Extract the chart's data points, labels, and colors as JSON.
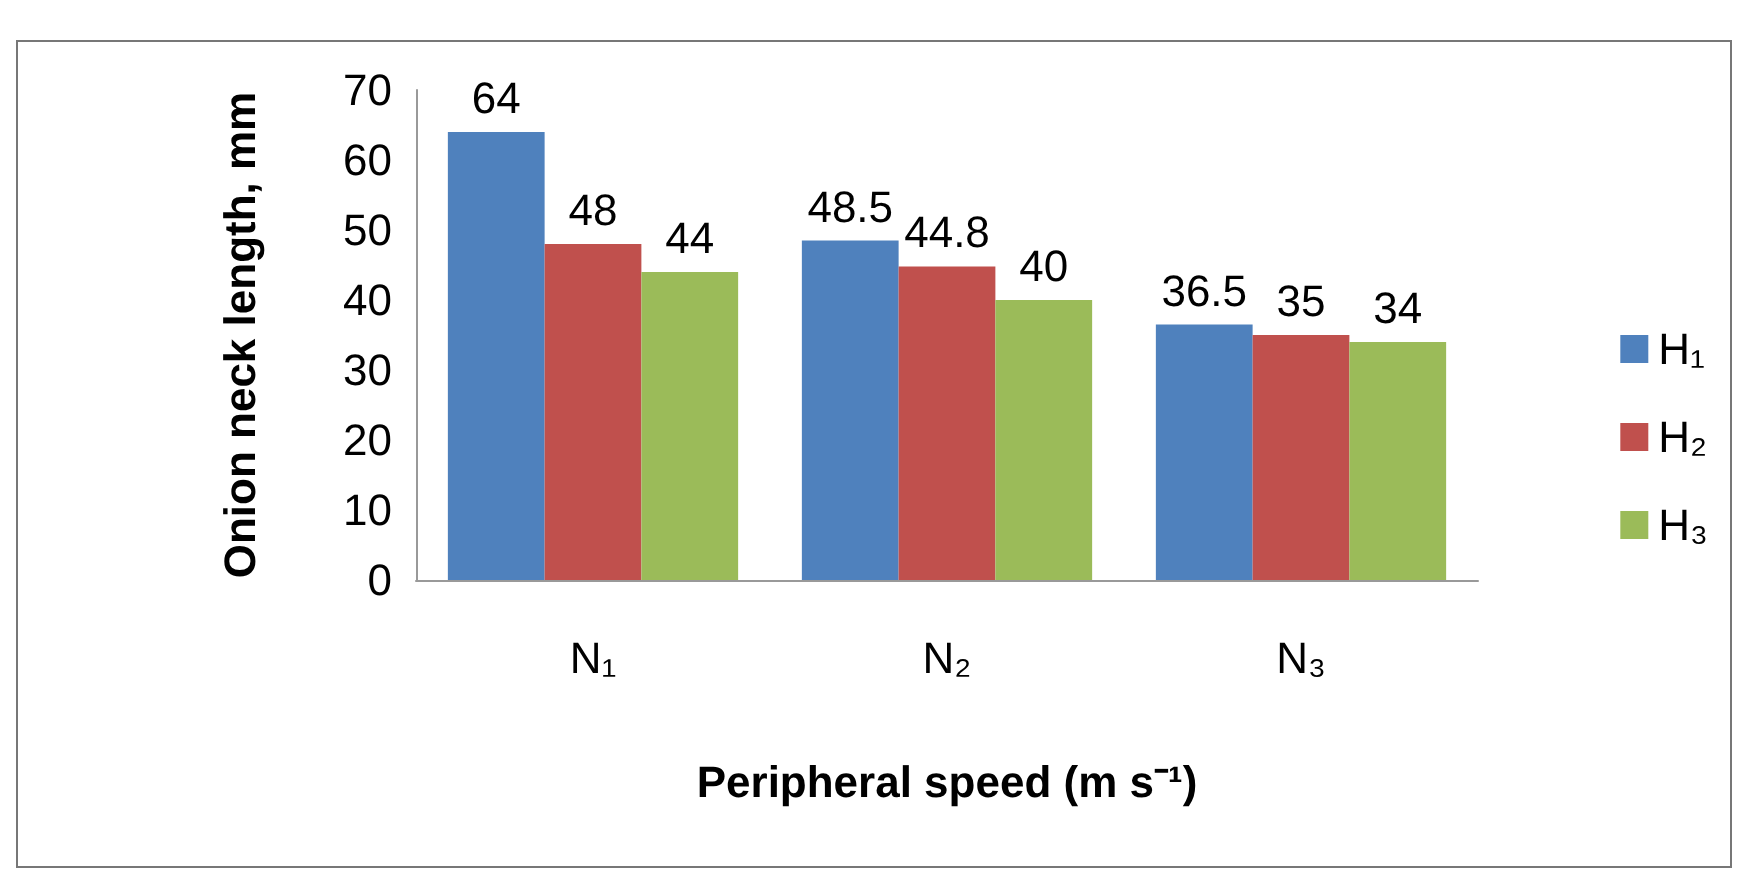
{
  "chart_data": {
    "type": "bar",
    "xlabel": "Peripheral speed (m s⁻¹)",
    "ylabel": "Onion neck length, mm",
    "categories": [
      "N₁",
      "N₂",
      "N₃"
    ],
    "series": [
      {
        "name": "H₁",
        "color": "#4f81bd",
        "values": [
          64,
          48.5,
          36.5
        ]
      },
      {
        "name": "H₂",
        "color": "#c0504d",
        "values": [
          48,
          44.8,
          35
        ]
      },
      {
        "name": "H₃",
        "color": "#9bbb59",
        "values": [
          44,
          40,
          34
        ]
      }
    ],
    "ylim": [
      0,
      70
    ],
    "yticks": [
      0,
      10,
      20,
      30,
      40,
      50,
      60,
      70
    ],
    "grid": false,
    "legend": "right",
    "data_labels": true
  }
}
